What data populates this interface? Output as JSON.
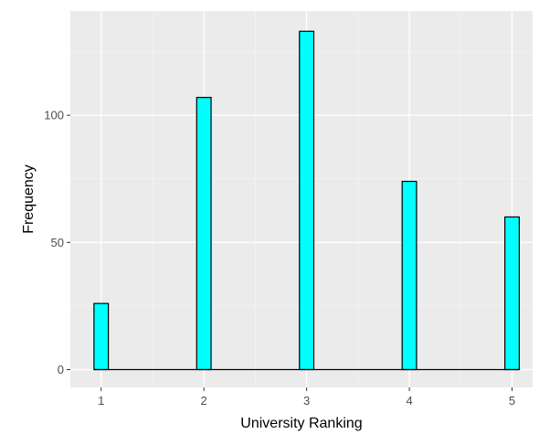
{
  "chart_data": {
    "type": "bar",
    "title": "",
    "xlabel": "University Ranking",
    "ylabel": "Frequency",
    "categories": [
      1,
      2,
      3,
      4,
      5
    ],
    "values": [
      26,
      107,
      133,
      74,
      60
    ],
    "xlim": [
      0.7,
      5.2
    ],
    "ylim": [
      -7,
      141
    ],
    "x_ticks": [
      1,
      2,
      3,
      4,
      5
    ],
    "y_ticks": [
      0,
      50,
      100
    ],
    "grid": true,
    "legend": "none",
    "colors": {
      "bar_fill": "#00FFFF",
      "bar_stroke": "#000000",
      "panel_background": "#EBEBEB",
      "grid_major": "#FFFFFF",
      "grid_minor": "#F5F5F5",
      "tick_text": "#4D4D4D"
    }
  }
}
